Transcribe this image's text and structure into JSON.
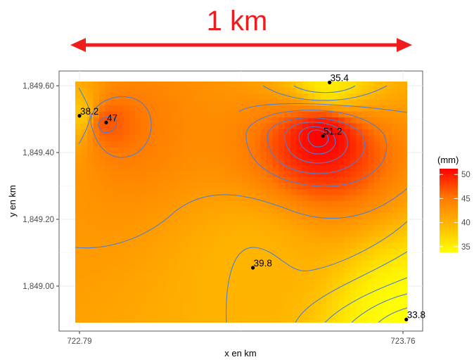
{
  "scale_bar": {
    "label": "1 km",
    "color": "#ee1c1c"
  },
  "chart_data": {
    "type": "heatmap",
    "title": "",
    "xlabel": "x en km",
    "ylabel": "y en km",
    "xlim": [
      722.79,
      723.76
    ],
    "ylim": [
      1848.89,
      1849.61
    ],
    "x_ticks": [
      {
        "value": 722.79,
        "label": "722.79"
      },
      {
        "value": 723.76,
        "label": "723.76"
      }
    ],
    "y_ticks": [
      {
        "value": 1849.0,
        "label": "1,849.00"
      },
      {
        "value": 1849.2,
        "label": "1,849.20"
      },
      {
        "value": 1849.4,
        "label": "1,849.40"
      },
      {
        "value": 1849.6,
        "label": "1,849.60"
      }
    ],
    "points": [
      {
        "x": 722.79,
        "y": 1849.51,
        "value": 38.2,
        "label": "38.2"
      },
      {
        "x": 722.87,
        "y": 1849.49,
        "value": 47,
        "label": "47"
      },
      {
        "x": 723.54,
        "y": 1849.61,
        "value": 35.4,
        "label": "35.4"
      },
      {
        "x": 723.52,
        "y": 1849.45,
        "value": 51.2,
        "label": "51.2"
      },
      {
        "x": 723.31,
        "y": 1849.055,
        "value": 39.8,
        "label": "39.8"
      },
      {
        "x": 723.77,
        "y": 1848.9,
        "value": 33.8,
        "label": "33.8"
      }
    ],
    "legend": {
      "title": "(mm)",
      "ticks": [
        35,
        40,
        45,
        50
      ],
      "range": [
        33.8,
        51.2
      ],
      "colors": [
        "#ffff00",
        "#ffb300",
        "#ff7a00",
        "#ff0000"
      ]
    },
    "contour_color": "#4a7fd9",
    "grid": true
  }
}
